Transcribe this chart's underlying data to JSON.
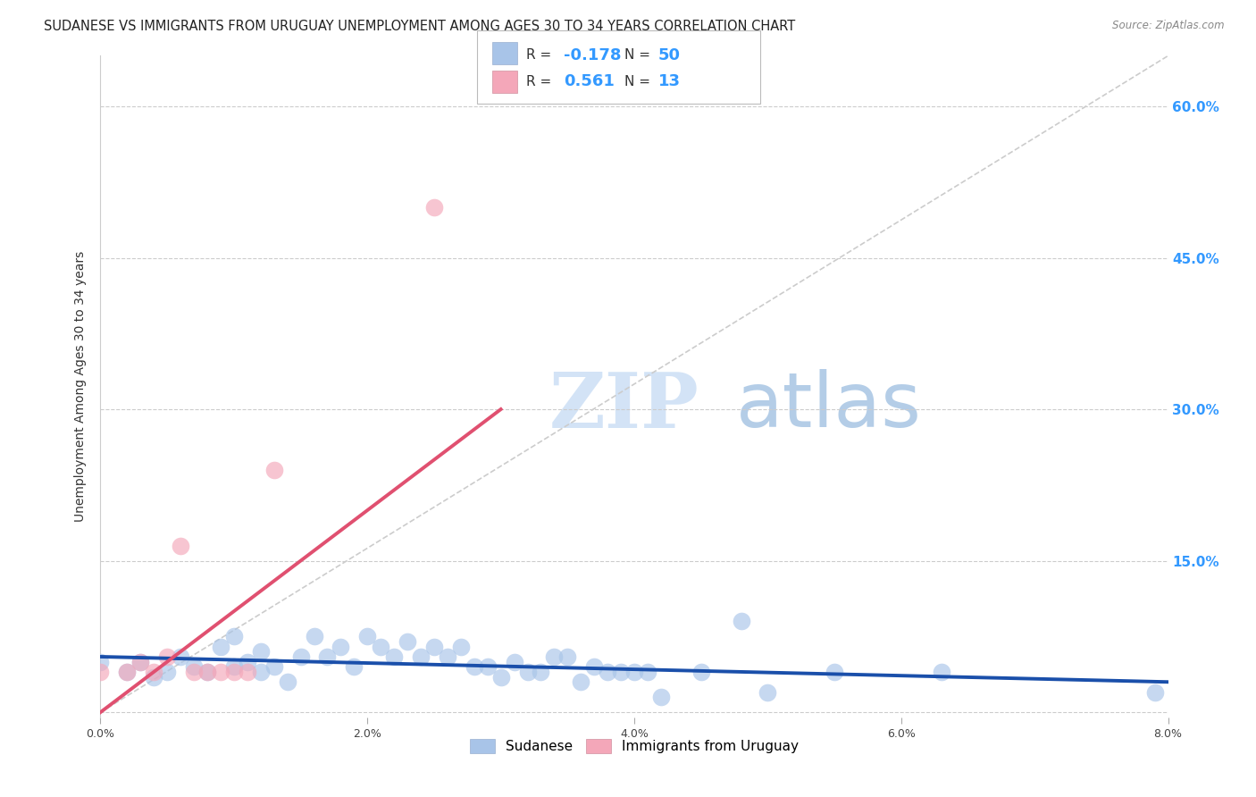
{
  "title": "SUDANESE VS IMMIGRANTS FROM URUGUAY UNEMPLOYMENT AMONG AGES 30 TO 34 YEARS CORRELATION CHART",
  "source": "Source: ZipAtlas.com",
  "ylabel": "Unemployment Among Ages 30 to 34 years",
  "xmin": 0.0,
  "xmax": 0.08,
  "ymin": -0.005,
  "ymax": 0.65,
  "yticks": [
    0.0,
    0.15,
    0.3,
    0.45,
    0.6
  ],
  "ytick_labels": [
    "",
    "15.0%",
    "30.0%",
    "45.0%",
    "60.0%"
  ],
  "xticks": [
    0.0,
    0.02,
    0.04,
    0.06,
    0.08
  ],
  "xtick_labels": [
    "0.0%",
    "2.0%",
    "4.0%",
    "6.0%",
    "8.0%"
  ],
  "legend_labels": [
    "Sudanese",
    "Immigrants from Uruguay"
  ],
  "blue_R": "-0.178",
  "blue_N": "50",
  "pink_R": "0.561",
  "pink_N": "13",
  "blue_color": "#a8c4e8",
  "pink_color": "#f4a7b9",
  "blue_line_color": "#1a4faa",
  "pink_line_color": "#e05070",
  "watermark_zip": "ZIP",
  "watermark_atlas": "atlas",
  "blue_scatter_x": [
    0.0,
    0.002,
    0.003,
    0.004,
    0.005,
    0.006,
    0.007,
    0.008,
    0.009,
    0.01,
    0.01,
    0.011,
    0.012,
    0.012,
    0.013,
    0.014,
    0.015,
    0.016,
    0.017,
    0.018,
    0.019,
    0.02,
    0.021,
    0.022,
    0.023,
    0.024,
    0.025,
    0.026,
    0.027,
    0.028,
    0.029,
    0.03,
    0.031,
    0.032,
    0.033,
    0.034,
    0.035,
    0.036,
    0.037,
    0.038,
    0.039,
    0.04,
    0.041,
    0.042,
    0.045,
    0.048,
    0.05,
    0.055,
    0.063,
    0.079
  ],
  "blue_scatter_y": [
    0.05,
    0.04,
    0.05,
    0.035,
    0.04,
    0.055,
    0.045,
    0.04,
    0.065,
    0.045,
    0.075,
    0.05,
    0.04,
    0.06,
    0.045,
    0.03,
    0.055,
    0.075,
    0.055,
    0.065,
    0.045,
    0.075,
    0.065,
    0.055,
    0.07,
    0.055,
    0.065,
    0.055,
    0.065,
    0.045,
    0.045,
    0.035,
    0.05,
    0.04,
    0.04,
    0.055,
    0.055,
    0.03,
    0.045,
    0.04,
    0.04,
    0.04,
    0.04,
    0.015,
    0.04,
    0.09,
    0.02,
    0.04,
    0.04,
    0.02
  ],
  "pink_scatter_x": [
    0.0,
    0.002,
    0.003,
    0.004,
    0.005,
    0.006,
    0.007,
    0.008,
    0.009,
    0.01,
    0.011,
    0.013,
    0.025
  ],
  "pink_scatter_y": [
    0.04,
    0.04,
    0.05,
    0.04,
    0.055,
    0.165,
    0.04,
    0.04,
    0.04,
    0.04,
    0.04,
    0.24,
    0.5
  ],
  "blue_trend_x": [
    0.0,
    0.08
  ],
  "blue_trend_y": [
    0.055,
    0.03
  ],
  "pink_trend_x": [
    0.0,
    0.03
  ],
  "pink_trend_y": [
    0.0,
    0.3
  ],
  "diag_line_color": "#cccccc",
  "grid_color": "#cccccc",
  "background_color": "#ffffff",
  "title_fontsize": 10.5,
  "axis_label_fontsize": 10,
  "tick_fontsize": 9,
  "legend_fontsize": 11,
  "right_tick_color": "#3399ff"
}
